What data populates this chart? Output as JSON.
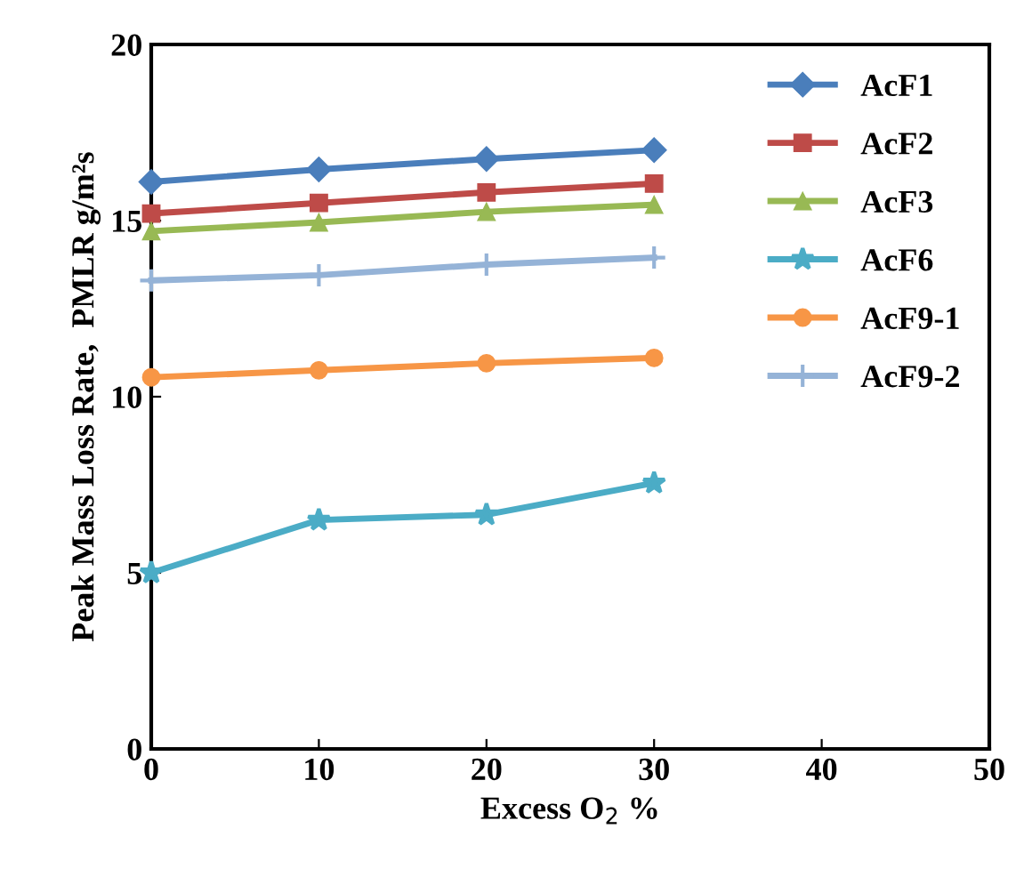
{
  "chart_data": {
    "type": "line",
    "xlabel": "Excess O$_{2}$ %",
    "ylabel": "Peak Mass Loss Rate,  PMLR g/m²s",
    "x": [
      0,
      10,
      20,
      30
    ],
    "series": [
      {
        "name": "AcF1",
        "color": "#4a7ebb",
        "marker": "diamond",
        "values": [
          16.1,
          16.45,
          16.75,
          17.0
        ]
      },
      {
        "name": "AcF2",
        "color": "#be4b48",
        "marker": "square",
        "values": [
          15.2,
          15.5,
          15.8,
          16.05
        ]
      },
      {
        "name": "AcF3",
        "color": "#98b954",
        "marker": "triangle",
        "values": [
          14.7,
          14.95,
          15.25,
          15.45
        ]
      },
      {
        "name": "AcF6",
        "color": "#4bacc6",
        "marker": "star",
        "values": [
          5.0,
          6.5,
          6.65,
          7.55
        ]
      },
      {
        "name": "AcF9-1",
        "color": "#f79646",
        "marker": "circle",
        "values": [
          10.55,
          10.75,
          10.95,
          11.1
        ]
      },
      {
        "name": "AcF9-2",
        "color": "#95b3d7",
        "marker": "cross",
        "values": [
          13.3,
          13.45,
          13.75,
          13.95
        ]
      }
    ],
    "xlim": [
      0,
      50
    ],
    "xticks": [
      0,
      10,
      20,
      30,
      40,
      50
    ],
    "ylim": [
      0,
      20
    ],
    "yticks": [
      0,
      5,
      10,
      15,
      20
    ],
    "grid": false,
    "legend": "top right"
  }
}
